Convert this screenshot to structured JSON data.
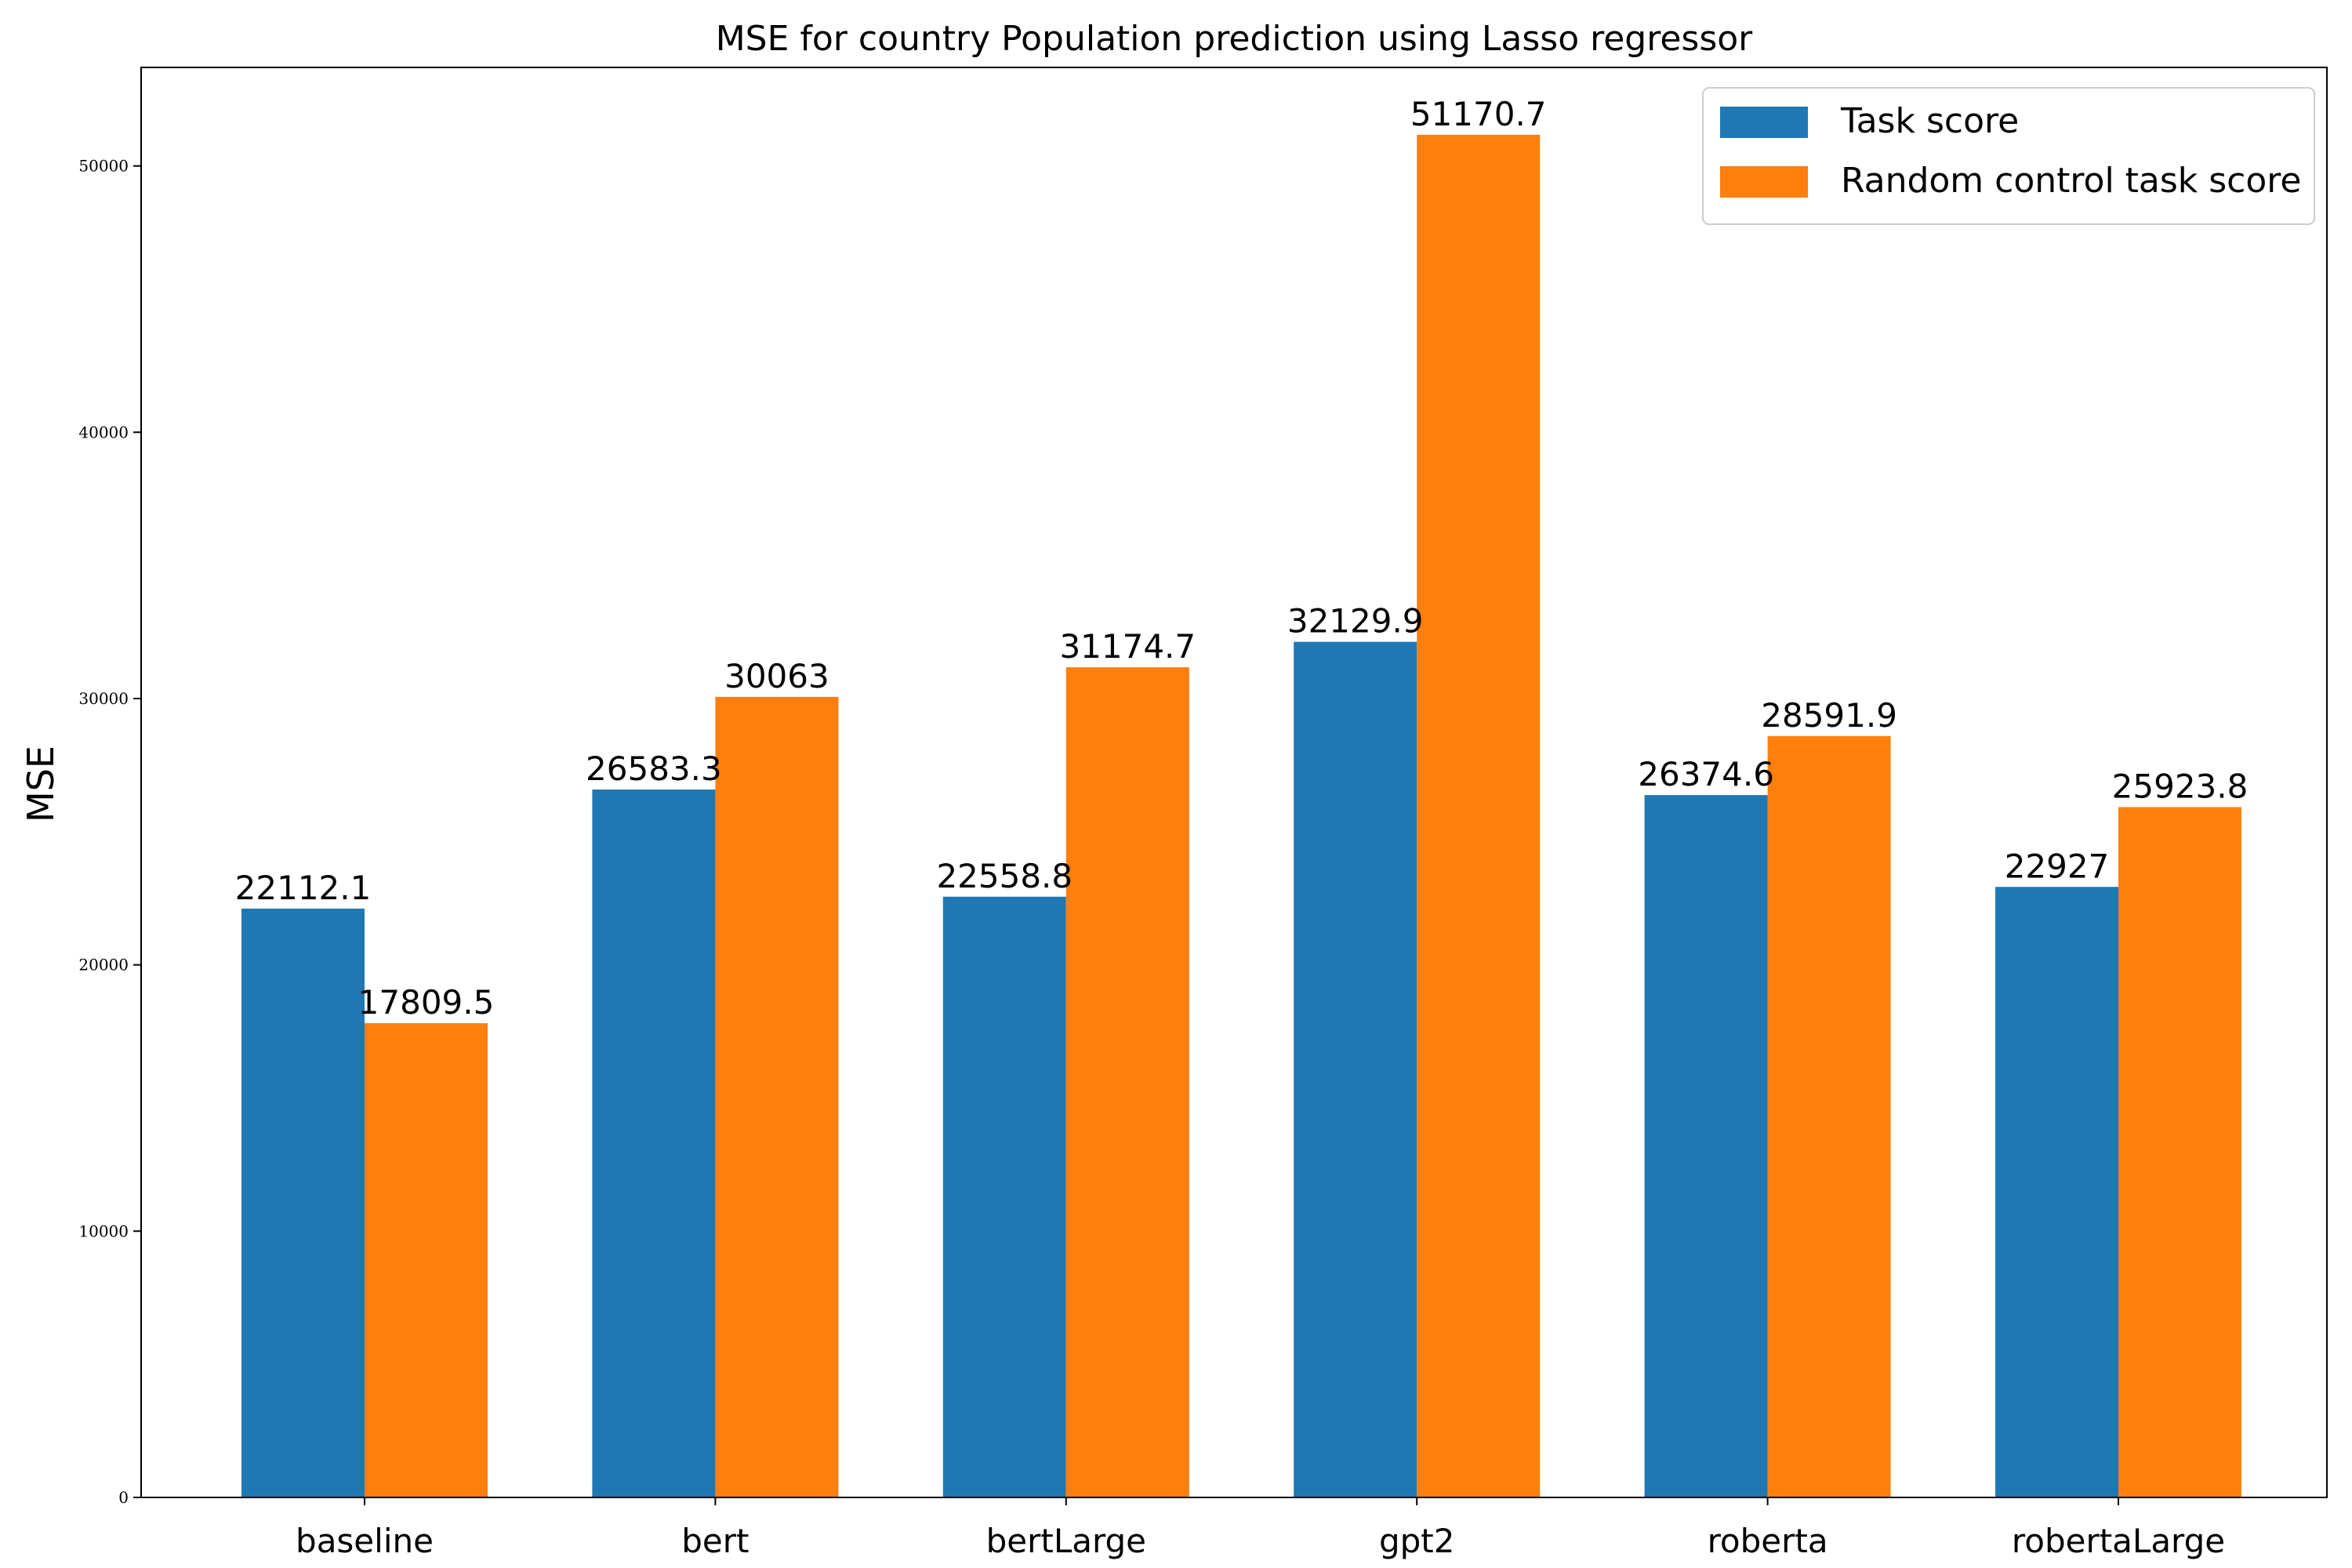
{
  "chart_data": {
    "type": "bar",
    "title": "MSE for country Population prediction using Lasso regressor",
    "xlabel": "",
    "ylabel": "MSE",
    "categories": [
      "baseline",
      "bert",
      "bertLarge",
      "gpt2",
      "roberta",
      "robertaLarge"
    ],
    "series": [
      {
        "name": "Task score",
        "color": "#1f77b4",
        "values": [
          22112.1,
          26583.3,
          22558.8,
          32129.9,
          26374.6,
          22927
        ],
        "labels": [
          "22112.1",
          "26583.3",
          "22558.8",
          "32129.9",
          "26374.6",
          "22927"
        ]
      },
      {
        "name": "Random control task score",
        "color": "#ff7f0e",
        "values": [
          17809.5,
          30063,
          31174.7,
          51170.7,
          28591.9,
          25923.8
        ],
        "labels": [
          "17809.5",
          "30063",
          "31174.7",
          "51170.7",
          "28591.9",
          "25923.8"
        ]
      }
    ],
    "ylim": [
      0,
      53700
    ],
    "yticks": [
      0,
      10000,
      20000,
      30000,
      40000,
      50000
    ],
    "ytick_labels": [
      "0",
      "10000",
      "20000",
      "30000",
      "40000",
      "50000"
    ],
    "grid": false,
    "legend": "top-right"
  }
}
